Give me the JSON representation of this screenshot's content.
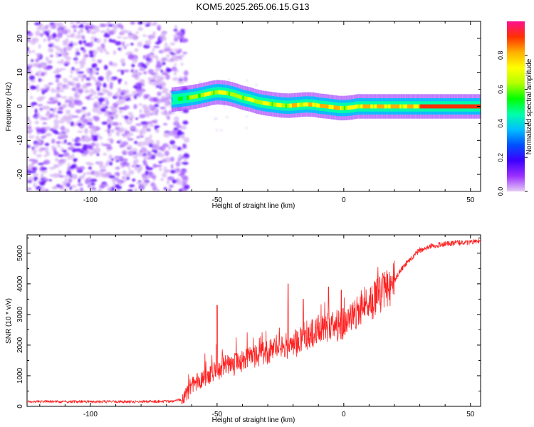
{
  "figure_title": "KOM5.2025.265.06.15.G13",
  "chart_data": [
    {
      "type": "heatmap",
      "title": "KOM5.2025.265.06.15.G13",
      "xlabel": "Height of straight line (km)",
      "ylabel": "Frequency (Hz)",
      "xlim": [
        -125,
        54
      ],
      "ylim": [
        -25,
        25
      ],
      "x_ticks": [
        -100,
        -50,
        0,
        50
      ],
      "y_ticks": [
        -20,
        -10,
        0,
        10,
        20
      ],
      "colorbar": {
        "label": "Normalized spectral amplitude",
        "range": [
          0,
          1
        ],
        "ticks": [
          "0.0",
          "0.2",
          "0.4",
          "0.6",
          "0.8"
        ],
        "colormap": [
          "#e6ccf5",
          "#9b30ff",
          "#3c00ff",
          "#0050ff",
          "#00bfff",
          "#00ffaa",
          "#00ff00",
          "#b4ff00",
          "#ffff00",
          "#ffb000",
          "#ff3000",
          "#ff1090"
        ]
      },
      "noise_region": {
        "x_range": [
          -125,
          -62
        ],
        "description_level": 0.1
      },
      "ridge": {
        "x": [
          -68,
          -62,
          -58,
          -55,
          -52,
          -50,
          -47,
          -44,
          -42,
          -40,
          -37,
          -35,
          -32,
          -30,
          -27,
          -25,
          -22,
          -20,
          -17,
          -15,
          -12,
          -10,
          -7,
          -5,
          -2,
          0,
          3,
          5,
          10,
          15,
          20,
          25,
          30,
          35,
          40,
          45,
          50,
          54
        ],
        "freq": [
          2.0,
          2.5,
          3.0,
          3.5,
          4.0,
          4.2,
          4.0,
          3.5,
          3.0,
          2.5,
          2.0,
          1.5,
          1.0,
          0.8,
          0.5,
          0.3,
          0.2,
          0.3,
          0.5,
          0.6,
          0.5,
          0.2,
          0.0,
          -0.2,
          -0.5,
          -0.5,
          -0.3,
          0.0,
          0.0,
          0.0,
          0.0,
          0.0,
          0.0,
          0.0,
          0.0,
          0.0,
          0.0,
          0.0
        ],
        "amplitude": [
          0.45,
          0.6,
          0.7,
          0.7,
          0.75,
          0.7,
          0.75,
          0.7,
          0.65,
          0.75,
          0.7,
          0.75,
          0.7,
          0.75,
          0.7,
          0.7,
          0.75,
          0.8,
          0.8,
          0.75,
          0.85,
          0.8,
          0.9,
          0.85,
          0.8,
          0.7,
          0.75,
          0.8,
          0.85,
          0.85,
          0.85,
          0.8,
          0.9,
          0.95,
          0.95,
          0.95,
          0.95,
          0.95
        ]
      }
    },
    {
      "type": "line",
      "xlabel": "Height of straight line (km)",
      "ylabel": "SNR (10 * v/v)",
      "xlim": [
        -125,
        54
      ],
      "ylim": [
        0,
        5600
      ],
      "x_ticks": [
        -100,
        -50,
        0,
        50
      ],
      "y_ticks": [
        0,
        1000,
        2000,
        3000,
        4000,
        5000
      ],
      "color": "#ff2020",
      "series": [
        {
          "name": "SNR",
          "x": [
            -125,
            -115,
            -105,
            -95,
            -85,
            -75,
            -68,
            -64,
            -62,
            -60,
            -58,
            -55,
            -52,
            -50,
            -48,
            -45,
            -42,
            -40,
            -37,
            -35,
            -32,
            -30,
            -27,
            -25,
            -22,
            -20,
            -17,
            -15,
            -12,
            -10,
            -7,
            -5,
            -2,
            0,
            3,
            5,
            8,
            10,
            12,
            15,
            18,
            20,
            22,
            25,
            28,
            30,
            33,
            35,
            40,
            45,
            50,
            54
          ],
          "y": [
            150,
            160,
            150,
            155,
            150,
            160,
            170,
            220,
            400,
            700,
            800,
            900,
            1100,
            1200,
            1300,
            1350,
            1400,
            1500,
            1600,
            1650,
            1700,
            1800,
            1900,
            2000,
            2000,
            2100,
            2200,
            2300,
            2400,
            2500,
            2550,
            2600,
            2650,
            2700,
            2900,
            3100,
            3300,
            3400,
            3500,
            3700,
            3900,
            4100,
            4400,
            4700,
            4950,
            5100,
            5200,
            5250,
            5300,
            5350,
            5350,
            5400
          ],
          "spikes": [
            [
              -50,
              3300
            ],
            [
              -22,
              4000
            ],
            [
              -16,
              3500
            ],
            [
              -6,
              3900
            ],
            [
              -1,
              3800
            ]
          ]
        }
      ]
    }
  ]
}
